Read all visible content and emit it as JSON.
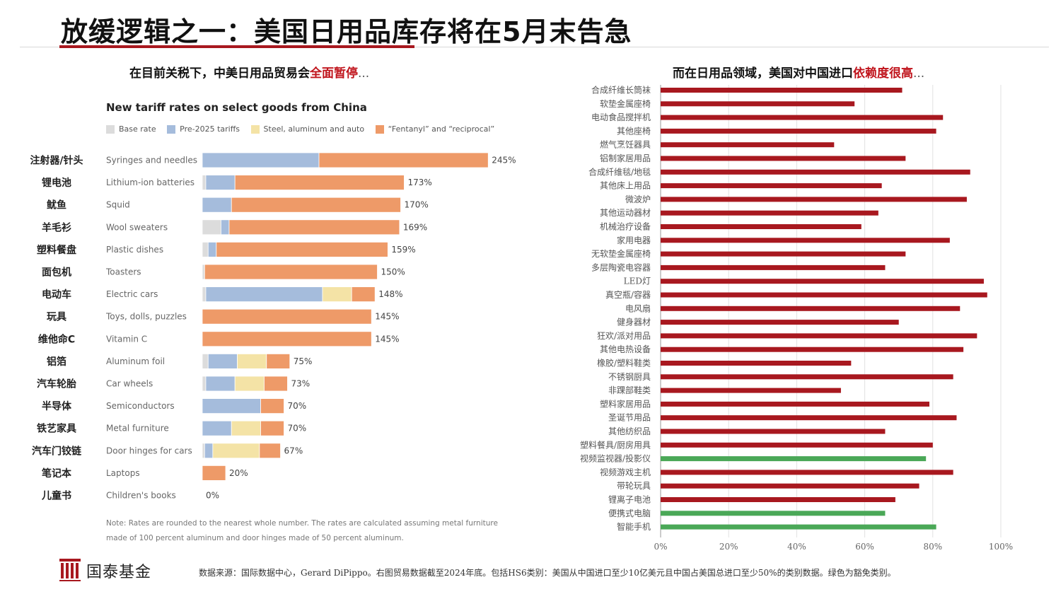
{
  "title": "放缓逻辑之一：美国日用品库存将在5月末告急",
  "subtitle_left": {
    "main": "在目前关税下，中美日用品贸易会",
    "highlight": "全面暂停",
    "tail": "..."
  },
  "subtitle_right": {
    "main": "而在日用品领域，美国对中国进口",
    "highlight": "依赖度很高",
    "tail": "..."
  },
  "note_lines": [
    "Note: Rates are rounded to the nearest whole number. The rates are calculated assuming metal furniture",
    "made of 100 percent aluminum and door hinges made of 50 percent aluminum."
  ],
  "logo": {
    "name": "国泰基金"
  },
  "source": "数据来源：国际数据中心，Gerard DiPippo。右图贸易数据截至2024年底。包括HS6类别：美国从中国进口至少10亿美元且中国占美国总进口至少50%的类别数据。绿色为豁免类别。",
  "colors": {
    "base": "#dcdcdc",
    "pre2025": "#a5bcdc",
    "steel": "#f4e3a6",
    "fentanyl": "#ee9a68",
    "accent_red": "#a8181f",
    "dependency_bar": "#a8181f",
    "exempt_bar": "#4aa857"
  },
  "chart_data": [
    {
      "type": "bar",
      "orientation": "horizontal",
      "stacked": true,
      "title": "New tariff rates on select goods from China",
      "legend": [
        "Base rate",
        "Pre-2025 tariffs",
        "Steel, aluminum and auto",
        "“Fentanyl” and “reciprocal”"
      ],
      "legend_position": "top",
      "categories": [
        "Syringes and needles",
        "Lithium-ion batteries",
        "Squid",
        "Wool sweaters",
        "Plastic dishes",
        "Toasters",
        "Electric cars",
        "Toys, dolls, puzzles",
        "Vitamin C",
        "Aluminum foil",
        "Car wheels",
        "Semiconductors",
        "Metal furniture",
        "Door hinges for cars",
        "Laptops",
        "Children's books"
      ],
      "categories_zh": [
        "注射器/针头",
        "锂电池",
        "鱿鱼",
        "羊毛衫",
        "塑料餐盘",
        "面包机",
        "电动车",
        "玩具",
        "维他命C",
        "铝箔",
        "汽车轮胎",
        "半导体",
        "铁艺家具",
        "汽车门铰链",
        "笔记本",
        "儿童书"
      ],
      "series": [
        {
          "name": "Base rate",
          "values": [
            0,
            3,
            0,
            16,
            5,
            2,
            3,
            0,
            0,
            5,
            3,
            0,
            0,
            2,
            0,
            0
          ]
        },
        {
          "name": "Pre-2025 tariffs",
          "values": [
            100,
            25,
            25,
            7,
            7,
            0,
            100,
            0,
            0,
            25,
            25,
            50,
            25,
            7,
            0,
            0
          ]
        },
        {
          "name": "Steel, aluminum and auto",
          "values": [
            0,
            0,
            0,
            0,
            0,
            0,
            25,
            0,
            0,
            25,
            25,
            0,
            25,
            40,
            0,
            0
          ]
        },
        {
          "name": "“Fentanyl” and “reciprocal”",
          "values": [
            145,
            145,
            145,
            146,
            147,
            148,
            20,
            145,
            145,
            20,
            20,
            20,
            20,
            18,
            20,
            0
          ]
        }
      ],
      "totals": [
        245,
        173,
        170,
        169,
        159,
        150,
        148,
        145,
        145,
        75,
        73,
        70,
        70,
        67,
        20,
        0
      ],
      "total_labels": [
        "245%",
        "173%",
        "170%",
        "169%",
        "159%",
        "150%",
        "148%",
        "145%",
        "145%",
        "75%",
        "73%",
        "70%",
        "70%",
        "67%",
        "20%",
        "0%"
      ]
    },
    {
      "type": "bar",
      "orientation": "horizontal",
      "categories": [
        "合成纤维长筒袜",
        "软垫金属座椅",
        "电动食品搅拌机",
        "其他座椅",
        "燃气烹饪器具",
        "铝制家居用品",
        "合成纤维毯/地毯",
        "其他床上用品",
        "微波炉",
        "其他运动器材",
        "机械治疗设备",
        "家用电器",
        "无软垫金属座椅",
        "多层陶瓷电容器",
        "LED灯",
        "真空瓶/容器",
        "电风扇",
        "健身器材",
        "狂欢/派对用品",
        "其他电热设备",
        "橡胶/塑料鞋类",
        "不锈钢厨具",
        "非踝部鞋类",
        "塑料家居用品",
        "圣诞节用品",
        "其他纺织品",
        "塑料餐具/厨房用具",
        "视频监视器/投影仪",
        "视频游戏主机",
        "带轮玩具",
        "锂离子电池",
        "便携式电脑",
        "智能手机"
      ],
      "values": [
        71,
        57,
        83,
        81,
        51,
        72,
        91,
        65,
        90,
        64,
        59,
        85,
        72,
        66,
        95,
        96,
        88,
        70,
        93,
        89,
        56,
        86,
        53,
        79,
        87,
        66,
        80,
        78,
        86,
        76,
        69,
        66,
        81
      ],
      "exempt": [
        false,
        false,
        false,
        false,
        false,
        false,
        false,
        false,
        false,
        false,
        false,
        false,
        false,
        false,
        false,
        false,
        false,
        false,
        false,
        false,
        false,
        false,
        false,
        false,
        false,
        false,
        false,
        true,
        false,
        false,
        false,
        true,
        true
      ],
      "xlim": [
        0,
        100
      ],
      "x_ticks": [
        "0%",
        "20%",
        "40%",
        "60%",
        "80%",
        "100%"
      ],
      "grid": true
    }
  ]
}
